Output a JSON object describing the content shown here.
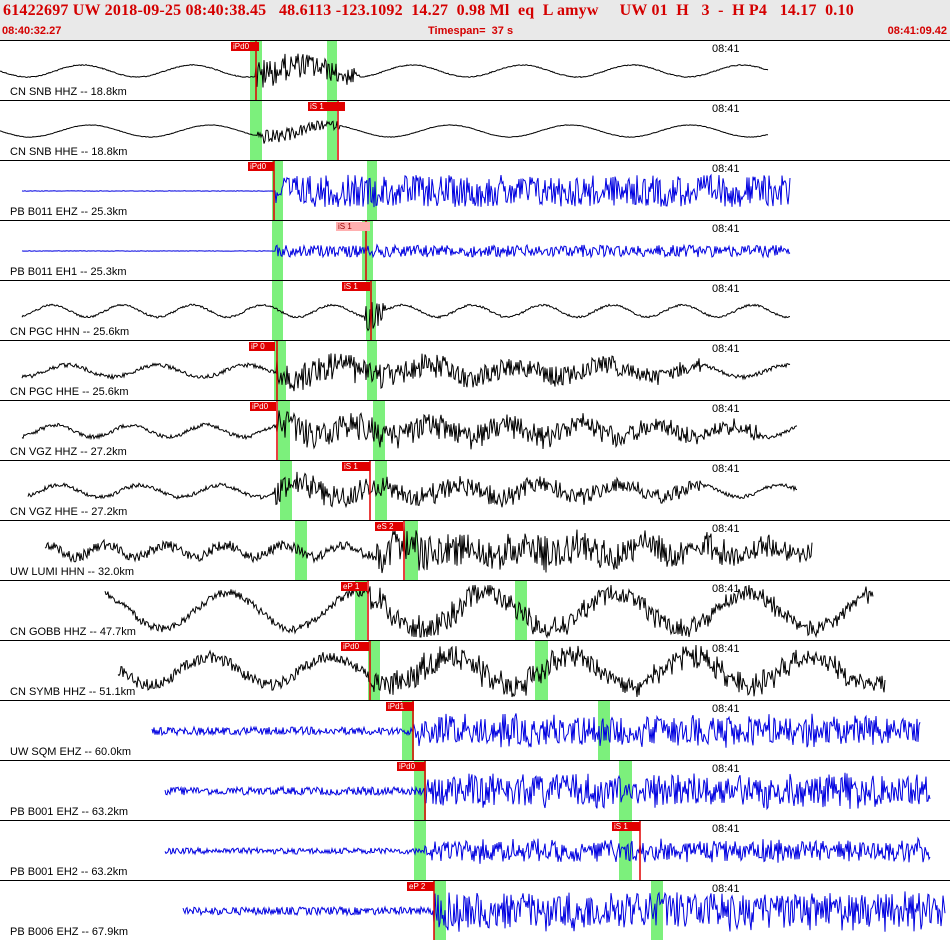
{
  "header": {
    "title": "61422697 UW 2018-09-25 08:40:38.45   48.6113 -123.1092  14.27  0.98 Ml  eq  L amyw     UW 01  H   3  -  H P4   14.17  0.10",
    "start_time": "08:40:32.27",
    "timespan": "Timespan=  37 s",
    "end_time": "08:41:09.42"
  },
  "colors": {
    "header_text": "#d40000",
    "pick": "#e00000",
    "window": "#7cf07c",
    "trace_black": "#000000",
    "trace_blue": "#0000e0"
  },
  "tracks": [
    {
      "label": "CN SNB HHZ -- 18.8km",
      "time": "08:41",
      "color": "black",
      "pick": "iPd0"
    },
    {
      "label": "CN SNB HHE -- 18.8km",
      "time": "08:41",
      "color": "black",
      "pick": "iS 1"
    },
    {
      "label": "PB B011 EHZ -- 25.3km",
      "time": "08:41",
      "color": "blue",
      "pick": "iPd0"
    },
    {
      "label": "PB B011 EH1 -- 25.3km",
      "time": "08:41",
      "color": "blue",
      "pick": "iS 1"
    },
    {
      "label": "CN PGC HHN -- 25.6km",
      "time": "08:41",
      "color": "black",
      "pick": "iS 1"
    },
    {
      "label": "CN PGC HHE -- 25.6km",
      "time": "08:41",
      "color": "black",
      "pick": "iP 0"
    },
    {
      "label": "CN VGZ HHZ -- 27.2km",
      "time": "08:41",
      "color": "black",
      "pick": "iPd0"
    },
    {
      "label": "CN VGZ HHE -- 27.2km",
      "time": "08:41",
      "color": "black",
      "pick": "iS 1"
    },
    {
      "label": "UW LUMI HHN -- 32.0km",
      "time": "08:41",
      "color": "black",
      "pick": "eS 2"
    },
    {
      "label": "CN GOBB HHZ -- 47.7km",
      "time": "08:41",
      "color": "black",
      "pick": "eP 1"
    },
    {
      "label": "CN SYMB HHZ -- 51.1km",
      "time": "08:41",
      "color": "black",
      "pick": "iPd0"
    },
    {
      "label": "UW SQM EHZ -- 60.0km",
      "time": "08:41",
      "color": "blue",
      "pick": "iPd1"
    },
    {
      "label": "PB B001 EHZ -- 63.2km",
      "time": "08:41",
      "color": "blue",
      "pick": "iPd0"
    },
    {
      "label": "PB B001 EH2 -- 63.2km",
      "time": "08:41",
      "color": "blue",
      "pick": "iS 1"
    },
    {
      "label": "PB B006 EHZ -- 67.9km",
      "time": "08:41",
      "color": "blue",
      "pick": "eP 2"
    }
  ]
}
